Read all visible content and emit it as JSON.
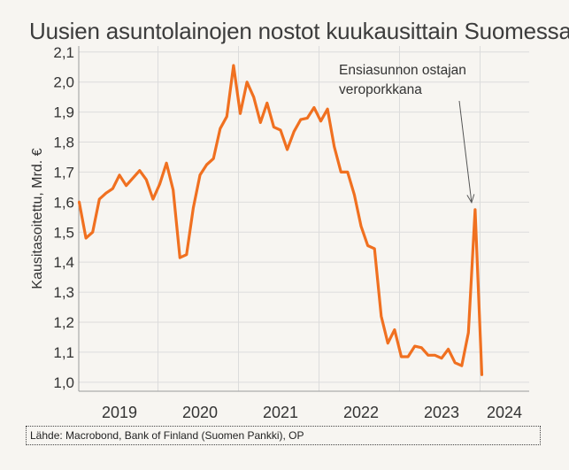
{
  "chart_data": {
    "type": "line",
    "title": "Uusien asuntolainojen nostot kuukausittain Suomessa",
    "ylabel": "Kausitasoitettu, Mrd. €",
    "xlabel": "",
    "ylim": [
      0.97,
      2.12
    ],
    "y_ticks": [
      "1,0",
      "1,1",
      "1,2",
      "1,3",
      "1,4",
      "1,5",
      "1,6",
      "1,7",
      "1,8",
      "1,9",
      "2,0",
      "2,1"
    ],
    "y_tick_values": [
      1.0,
      1.1,
      1.2,
      1.3,
      1.4,
      1.5,
      1.6,
      1.7,
      1.8,
      1.9,
      2.0,
      2.1
    ],
    "x_ticks": [
      "2019",
      "2020",
      "2021",
      "2022",
      "2023",
      "2024"
    ],
    "x_start": "2018-07",
    "grid": true,
    "series": [
      {
        "color": "#f07020",
        "values": [
          1.6,
          1.48,
          1.5,
          1.61,
          1.63,
          1.645,
          1.69,
          1.655,
          1.68,
          1.705,
          1.675,
          1.61,
          1.66,
          1.73,
          1.64,
          1.415,
          1.425,
          1.58,
          1.69,
          1.725,
          1.745,
          1.845,
          1.885,
          2.055,
          1.895,
          2.0,
          1.95,
          1.865,
          1.93,
          1.85,
          1.84,
          1.775,
          1.835,
          1.875,
          1.88,
          1.915,
          1.87,
          1.91,
          1.785,
          1.7,
          1.7,
          1.625,
          1.52,
          1.455,
          1.445,
          1.22,
          1.13,
          1.175,
          1.085,
          1.085,
          1.12,
          1.115,
          1.09,
          1.09,
          1.08,
          1.11,
          1.065,
          1.055,
          1.165,
          1.575,
          1.025
        ]
      }
    ],
    "annotation": {
      "lines": [
        "Ensiasunnon ostajan",
        "veroporkkana"
      ],
      "target_index": 59
    }
  },
  "source_note": "Lähde: Macrobond, Bank of Finland (Suomen Pankki), OP"
}
